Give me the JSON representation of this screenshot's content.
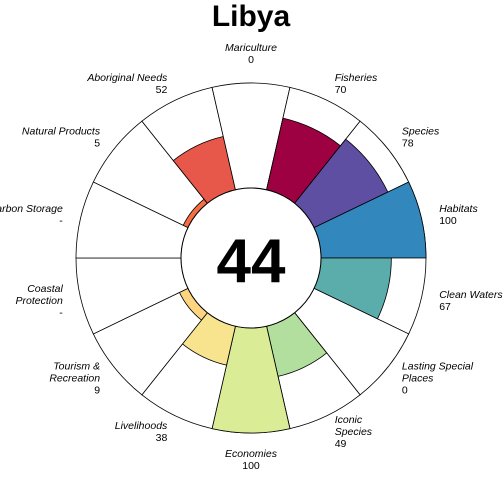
{
  "chart_data": {
    "type": "pie",
    "title": "Libya",
    "center_score": "44",
    "max_value": 100,
    "outline_color": "#000000",
    "goals": [
      {
        "name_lines": [
          "Natural Products"
        ],
        "value": 5,
        "value_label": "5",
        "color": "#F46D43"
      },
      {
        "name_lines": [
          "Aboriginal Needs"
        ],
        "value": 52,
        "value_label": "52",
        "color": "#E8584A"
      },
      {
        "name_lines": [
          "Mariculture"
        ],
        "value": 0,
        "value_label": "0",
        "color": "#D53E4F"
      },
      {
        "name_lines": [
          "Fisheries"
        ],
        "value": 70,
        "value_label": "70",
        "color": "#9E0142"
      },
      {
        "name_lines": [
          "Species"
        ],
        "value": 78,
        "value_label": "78",
        "color": "#5E4FA2"
      },
      {
        "name_lines": [
          "Habitats"
        ],
        "value": 100,
        "value_label": "100",
        "color": "#3288BD"
      },
      {
        "name_lines": [
          "Clean Waters"
        ],
        "value": 67,
        "value_label": "67",
        "color": "#5AADAA"
      },
      {
        "name_lines": [
          "Lasting Special",
          "Places"
        ],
        "value": 0,
        "value_label": "0",
        "color": "#66C2A5"
      },
      {
        "name_lines": [
          "Iconic",
          "Species"
        ],
        "value": 49,
        "value_label": "49",
        "color": "#B3DF9E"
      },
      {
        "name_lines": [
          "Economies"
        ],
        "value": 100,
        "value_label": "100",
        "color": "#DAEC96"
      },
      {
        "name_lines": [
          "Livelihoods"
        ],
        "value": 38,
        "value_label": "38",
        "color": "#F8E48F"
      },
      {
        "name_lines": [
          "Tourism &",
          "Recreation"
        ],
        "value": 9,
        "value_label": "9",
        "color": "#FDD480"
      },
      {
        "name_lines": [
          "Coastal",
          "Protection"
        ],
        "value": null,
        "value_label": "-",
        "color": "#FDAE61"
      },
      {
        "name_lines": [
          "Carbon Storage"
        ],
        "value": null,
        "value_label": "-",
        "color": "#F78F55"
      }
    ]
  }
}
